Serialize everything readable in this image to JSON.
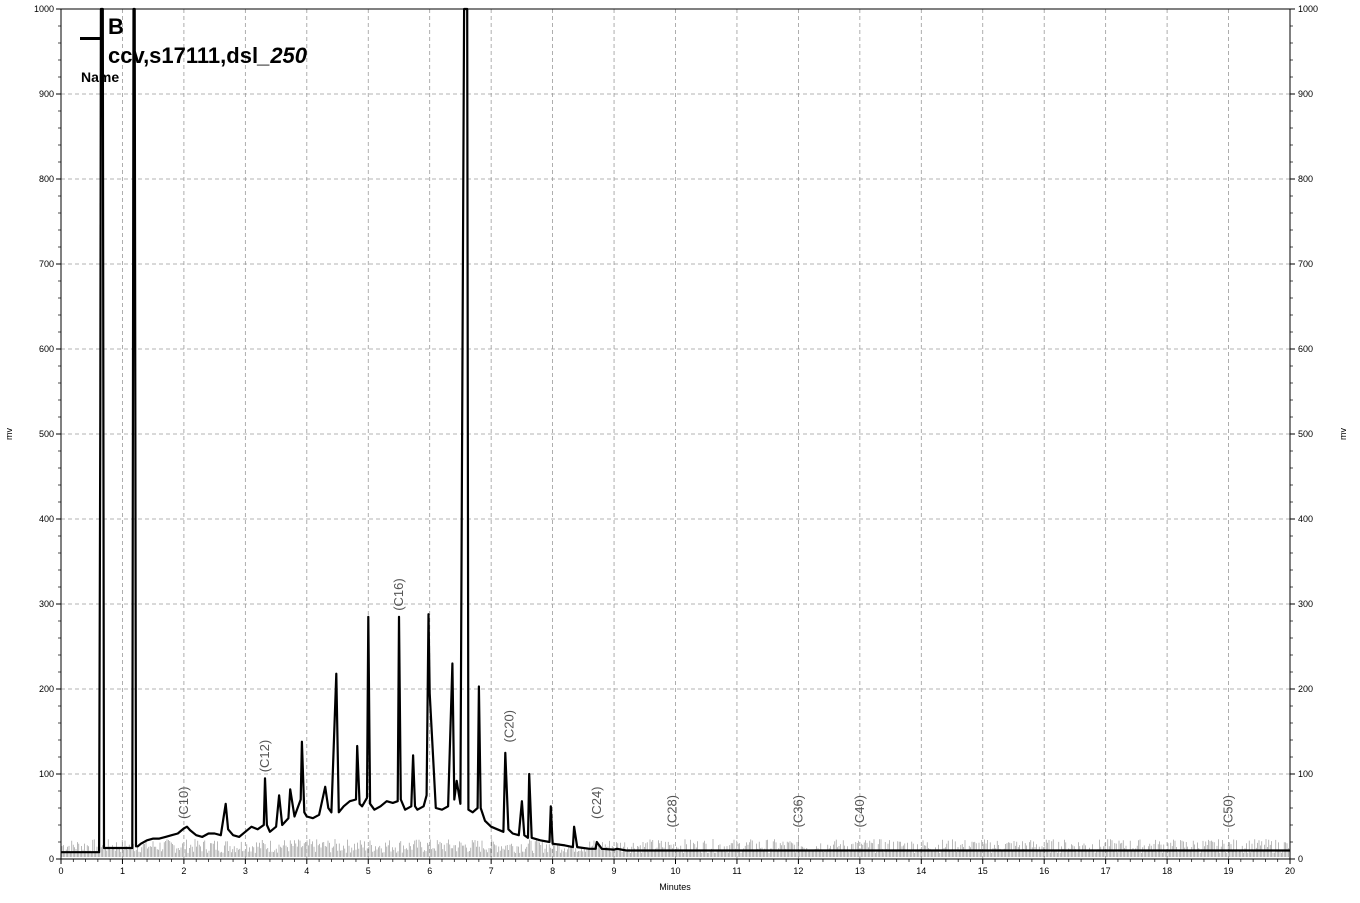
{
  "chart_data": {
    "type": "line",
    "title": "",
    "xlabel": "Minutes",
    "ylabel": "mv",
    "ylabel_right": "mv",
    "xlim": [
      0,
      20
    ],
    "ylim": [
      0,
      1000
    ],
    "x_ticks": [
      0,
      1,
      2,
      3,
      4,
      5,
      6,
      7,
      8,
      9,
      10,
      11,
      12,
      13,
      14,
      15,
      16,
      17,
      18,
      19,
      20
    ],
    "y_ticks": [
      0,
      100,
      200,
      300,
      400,
      500,
      600,
      700,
      800,
      900,
      1000
    ],
    "grid": true,
    "legend": {
      "placement": "top-left",
      "title": "B",
      "series_name": "ccv,s17111,dsl_250",
      "series_name_plain": "ccv,s17111,dsl",
      "series_name_italic": "_250",
      "name_caption": "Name"
    },
    "annotations": [
      {
        "text": "(C10)",
        "x": 2.0,
        "y": 40
      },
      {
        "text": "(C12)",
        "x": 3.32,
        "y": 95
      },
      {
        "text": "(C16)",
        "x": 5.5,
        "y": 285
      },
      {
        "text": "(C20)",
        "x": 7.3,
        "y": 130
      },
      {
        "text": "(C24)",
        "x": 8.72,
        "y": 40
      },
      {
        "text": "(C28)",
        "x": 9.95,
        "y": 30
      },
      {
        "text": "(C36)",
        "x": 12.0,
        "y": 30
      },
      {
        "text": "(C40)",
        "x": 13.0,
        "y": 30
      },
      {
        "text": "(C50)",
        "x": 19.0,
        "y": 30
      }
    ],
    "series": [
      {
        "x": [
          0,
          0.3,
          0.62,
          0.64,
          0.65,
          0.66,
          0.68,
          0.7,
          1.16,
          1.18,
          1.2,
          1.22,
          1.25,
          1.3,
          1.4,
          1.5,
          1.6,
          1.7,
          1.8,
          1.9,
          2.0,
          2.05,
          2.1,
          2.2,
          2.3,
          2.4,
          2.5,
          2.6,
          2.68,
          2.72,
          2.8,
          2.9,
          3.0,
          3.1,
          3.2,
          3.3,
          3.32,
          3.35,
          3.4,
          3.5,
          3.55,
          3.6,
          3.7,
          3.73,
          3.8,
          3.9,
          3.92,
          3.96,
          4.0,
          4.1,
          4.2,
          4.3,
          4.35,
          4.4,
          4.48,
          4.52,
          4.6,
          4.7,
          4.8,
          4.82,
          4.86,
          4.9,
          4.98,
          5.0,
          5.03,
          5.1,
          5.2,
          5.3,
          5.4,
          5.48,
          5.5,
          5.53,
          5.6,
          5.7,
          5.73,
          5.76,
          5.8,
          5.9,
          5.95,
          5.98,
          6.0,
          6.1,
          6.2,
          6.3,
          6.37,
          6.4,
          6.44,
          6.5,
          6.56,
          6.58,
          6.59,
          6.61,
          6.63,
          6.7,
          6.78,
          6.8,
          6.83,
          6.9,
          7.0,
          7.1,
          7.2,
          7.23,
          7.28,
          7.35,
          7.45,
          7.5,
          7.54,
          7.6,
          7.62,
          7.66,
          7.8,
          7.95,
          7.97,
          8.0,
          8.2,
          8.33,
          8.35,
          8.4,
          8.6,
          8.7,
          8.72,
          8.8,
          9.0,
          9.05,
          9.2,
          9.5,
          10,
          11,
          12,
          13,
          14,
          15,
          16,
          17,
          18,
          19,
          20
        ],
        "y": [
          8,
          8,
          8,
          520,
          1000,
          1000,
          1000,
          13,
          13,
          1000,
          1000,
          15,
          15,
          18,
          22,
          24,
          24,
          26,
          28,
          30,
          36,
          38,
          34,
          28,
          26,
          30,
          30,
          28,
          65,
          35,
          28,
          26,
          32,
          38,
          35,
          40,
          95,
          40,
          32,
          38,
          75,
          40,
          48,
          82,
          50,
          70,
          138,
          55,
          50,
          48,
          52,
          85,
          60,
          55,
          218,
          55,
          62,
          68,
          70,
          133,
          65,
          62,
          72,
          285,
          65,
          58,
          62,
          68,
          66,
          68,
          285,
          70,
          58,
          62,
          122,
          62,
          58,
          62,
          75,
          288,
          195,
          60,
          58,
          62,
          230,
          70,
          92,
          65,
          1000,
          1000,
          1000,
          1000,
          58,
          55,
          60,
          203,
          60,
          45,
          38,
          35,
          32,
          125,
          35,
          30,
          28,
          68,
          28,
          25,
          100,
          25,
          22,
          20,
          62,
          18,
          16,
          14,
          38,
          14,
          12,
          12,
          20,
          12,
          11,
          12,
          10,
          10,
          10,
          10,
          10,
          10,
          10,
          10,
          10,
          10,
          10,
          10,
          10
        ]
      }
    ]
  }
}
